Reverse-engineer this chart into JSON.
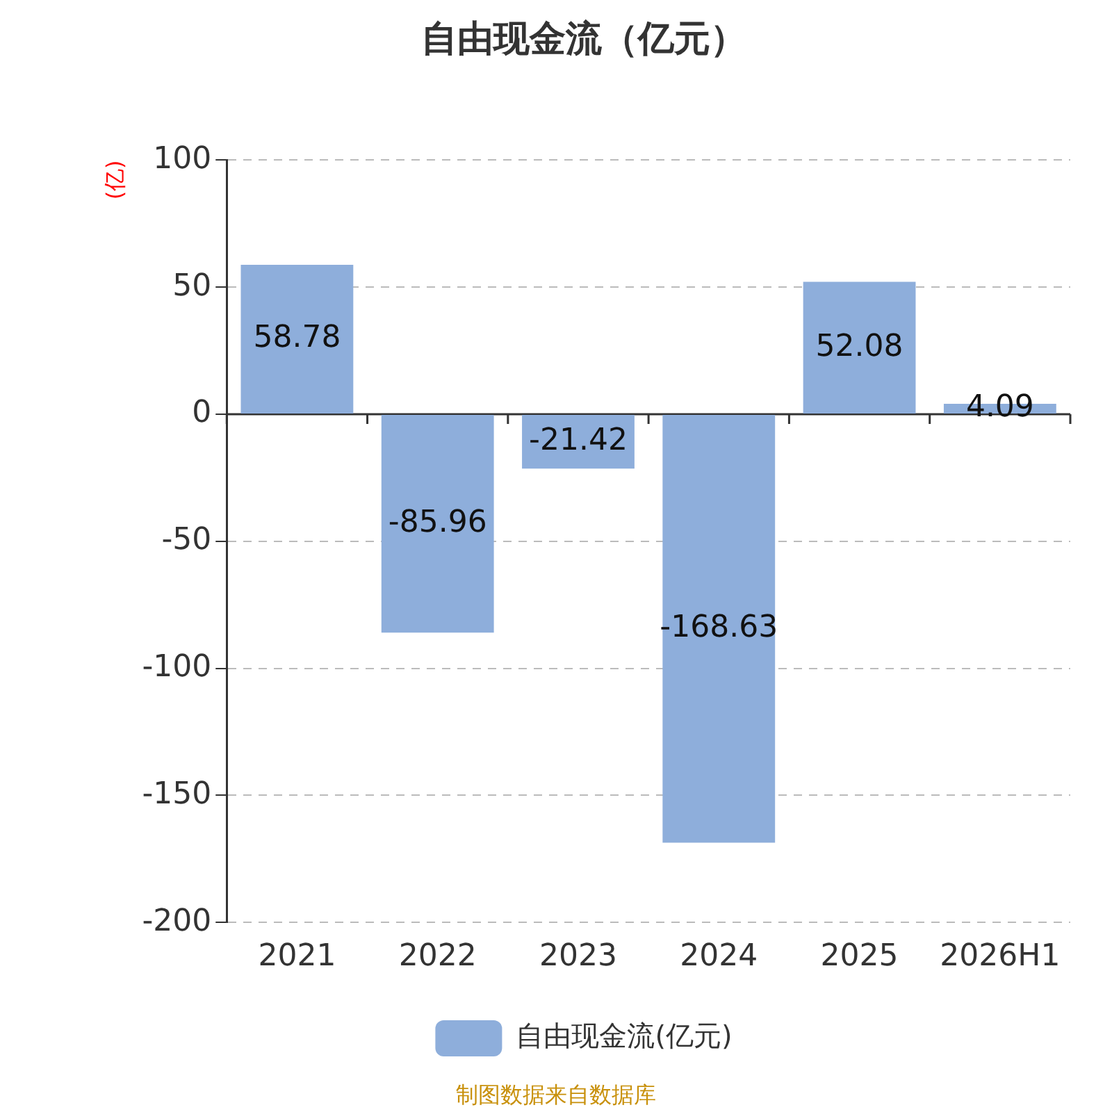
{
  "chart_data": {
    "type": "bar",
    "title": "自由现金流（亿元）",
    "ylabel": "(亿)",
    "categories": [
      "2021",
      "2022",
      "2023",
      "2024",
      "2025",
      "2026H1"
    ],
    "series": [
      {
        "name": "自由现金流(亿元)",
        "color": "#8eaedb",
        "values": [
          58.78,
          -85.96,
          -21.42,
          -168.63,
          52.08,
          4.09
        ]
      }
    ],
    "ylim": [
      -200,
      100
    ],
    "yticks": [
      -200,
      -150,
      -100,
      -50,
      0,
      50,
      100
    ],
    "grid": "y",
    "legend": "bottom",
    "data_labels": true,
    "annotations": [
      "制图数据来自数据库"
    ]
  }
}
